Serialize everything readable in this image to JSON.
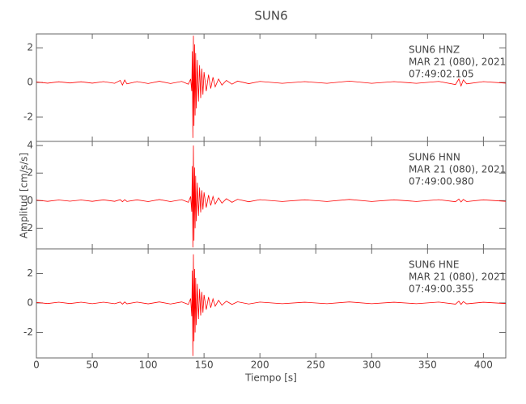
{
  "chart_data": {
    "type": "line",
    "title": "SUN6",
    "xlabel": "Tiempo [s]",
    "ylabel": "Amplitud [cm/s/s]",
    "color": "#ff0000",
    "xlim": [
      0,
      420
    ],
    "xticks": [
      0,
      50,
      100,
      150,
      200,
      250,
      300,
      350,
      400
    ],
    "x": [
      0,
      10,
      20,
      30,
      40,
      50,
      60,
      70,
      75,
      77,
      79,
      81,
      90,
      100,
      110,
      120,
      130,
      136,
      138,
      139,
      139.5,
      140,
      140.5,
      141,
      141.5,
      142,
      142.5,
      143,
      144,
      145,
      146,
      147,
      148,
      149,
      150,
      152,
      154,
      156,
      158,
      160,
      163,
      166,
      170,
      175,
      180,
      190,
      200,
      220,
      240,
      260,
      280,
      300,
      320,
      340,
      360,
      375,
      378,
      380,
      382,
      385,
      400,
      420
    ],
    "panels": [
      {
        "annotation": [
          "SUN6   HNZ",
          "MAR 21 (080), 2021",
          "07:49:02.105"
        ],
        "ylim": [
          -3.4,
          2.8
        ],
        "yticks": [
          -2,
          0,
          2
        ],
        "values": [
          0.03,
          -0.04,
          0.04,
          -0.03,
          0.04,
          -0.04,
          0.05,
          -0.05,
          0.12,
          -0.15,
          0.14,
          -0.08,
          0.05,
          -0.06,
          0.07,
          -0.06,
          0.06,
          -0.1,
          0.2,
          -0.5,
          1.8,
          -3.2,
          2.7,
          -2.5,
          2.2,
          -1.9,
          1.7,
          -1.5,
          1.3,
          -1.1,
          1.0,
          -0.9,
          0.8,
          -0.7,
          0.6,
          -0.5,
          0.45,
          -0.35,
          0.3,
          -0.25,
          0.2,
          -0.15,
          0.12,
          -0.1,
          0.08,
          -0.07,
          0.06,
          -0.05,
          0.05,
          -0.05,
          0.08,
          -0.05,
          0.05,
          -0.05,
          0.06,
          -0.12,
          0.2,
          -0.2,
          0.15,
          -0.08,
          0.05,
          -0.04
        ]
      },
      {
        "annotation": [
          "SUN6   HNN",
          "MAR 21 (080), 2021",
          "07:49:00.980"
        ],
        "ylim": [
          -3.5,
          4.3
        ],
        "yticks": [
          -2,
          0,
          2,
          4
        ],
        "values": [
          0.04,
          -0.05,
          0.05,
          -0.04,
          0.05,
          -0.05,
          0.06,
          -0.05,
          0.07,
          -0.08,
          0.07,
          -0.06,
          0.06,
          -0.07,
          0.08,
          -0.07,
          0.07,
          -0.12,
          0.3,
          -0.8,
          2.5,
          -3.4,
          4.0,
          -2.9,
          2.4,
          -2.0,
          1.8,
          -1.5,
          1.3,
          -1.1,
          0.95,
          -0.85,
          0.75,
          -0.65,
          0.6,
          -0.5,
          0.4,
          -0.35,
          0.3,
          -0.25,
          0.2,
          -0.18,
          0.14,
          -0.12,
          0.1,
          -0.08,
          0.07,
          -0.06,
          0.06,
          -0.06,
          0.09,
          -0.06,
          0.06,
          -0.06,
          0.07,
          -0.08,
          0.12,
          -0.1,
          0.09,
          -0.07,
          0.06,
          -0.05
        ]
      },
      {
        "annotation": [
          "SUN6   HNE",
          "MAR 21 (080), 2021",
          "07:49:00.355"
        ],
        "ylim": [
          -3.73,
          3.67
        ],
        "yticks": [
          -2,
          0,
          2
        ],
        "values": [
          0.04,
          -0.04,
          0.05,
          -0.04,
          0.05,
          -0.05,
          0.05,
          -0.05,
          0.06,
          -0.08,
          0.07,
          -0.06,
          0.06,
          -0.06,
          0.07,
          -0.07,
          0.07,
          -0.1,
          0.3,
          -0.9,
          2.2,
          -3.6,
          3.3,
          -2.6,
          2.3,
          -2.0,
          1.7,
          -1.5,
          1.3,
          -1.1,
          0.95,
          -0.85,
          0.75,
          -0.65,
          0.55,
          -0.45,
          0.4,
          -0.32,
          0.28,
          -0.22,
          0.18,
          -0.15,
          0.12,
          -0.1,
          0.08,
          -0.07,
          0.06,
          -0.05,
          0.05,
          -0.05,
          0.07,
          -0.05,
          0.05,
          -0.05,
          0.06,
          -0.08,
          0.12,
          -0.1,
          0.09,
          -0.06,
          0.05,
          -0.04
        ]
      }
    ]
  }
}
